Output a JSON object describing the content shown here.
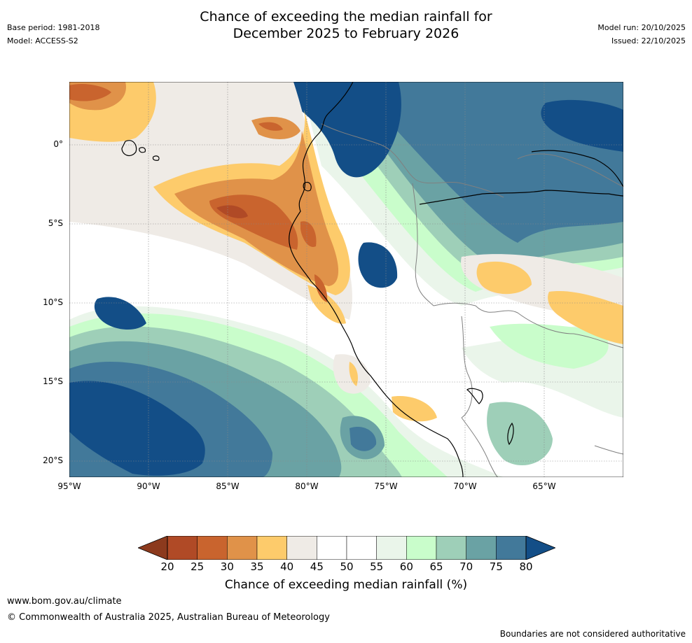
{
  "title": {
    "line1": "Chance of exceeding the median rainfall for",
    "line2": "December 2025 to February 2026"
  },
  "meta_left": {
    "base_period": "Base period: 1981-2018",
    "model": "Model: ACCESS-S2"
  },
  "meta_right": {
    "model_run": "Model run: 20/10/2025",
    "issued": "Issued: 22/10/2025"
  },
  "map": {
    "lon_range": [
      -95,
      -60
    ],
    "lat_range": [
      -21,
      4
    ],
    "x_ticks": [
      {
        "lon": -95,
        "label": "95°W"
      },
      {
        "lon": -90,
        "label": "90°W"
      },
      {
        "lon": -85,
        "label": "85°W"
      },
      {
        "lon": -80,
        "label": "80°W"
      },
      {
        "lon": -75,
        "label": "75°W"
      },
      {
        "lon": -70,
        "label": "70°W"
      },
      {
        "lon": -65,
        "label": "65°W"
      }
    ],
    "y_ticks": [
      {
        "lat": 0,
        "label": "0°"
      },
      {
        "lat": -5,
        "label": "5°S"
      },
      {
        "lat": -10,
        "label": "10°S"
      },
      {
        "lat": -15,
        "label": "15°S"
      },
      {
        "lat": -20,
        "label": "20°S"
      }
    ],
    "colors": {
      "c20_25": "#b04a26",
      "c25_30": "#c9642e",
      "c30_35": "#e09249",
      "c35_40": "#fdcb6b",
      "c40_45": "#efebe6",
      "c45_55": "#ffffff",
      "c55_60": "#eaf5ea",
      "c60_65": "#c9fdcb",
      "c65_70": "#9ecfb8",
      "c70_75": "#6aa2a4",
      "c75_80": "#42799a",
      "c80_plus": "#134e87",
      "coast": "#000000",
      "border": "#808080",
      "grid": "#888888"
    }
  },
  "colorbar": {
    "ticks": [
      "20",
      "25",
      "30",
      "35",
      "40",
      "45",
      "50",
      "55",
      "60",
      "65",
      "70",
      "75",
      "80"
    ],
    "colors": [
      "#b04a26",
      "#c9642e",
      "#e09249",
      "#fdcb6b",
      "#efebe6",
      "#ffffff",
      "#ffffff",
      "#eaf5ea",
      "#c9fdcb",
      "#9ecfb8",
      "#6aa2a4",
      "#42799a"
    ],
    "under_color": "#8c3a1d",
    "over_color": "#134e87",
    "label": "Chance of exceeding median rainfall (%)"
  },
  "footer": {
    "url": "www.bom.gov.au/climate",
    "copyright": "© Commonwealth of Australia 2025, Australian Bureau of Meteorology",
    "disclaimer": "Boundaries are not considered authoritative"
  }
}
